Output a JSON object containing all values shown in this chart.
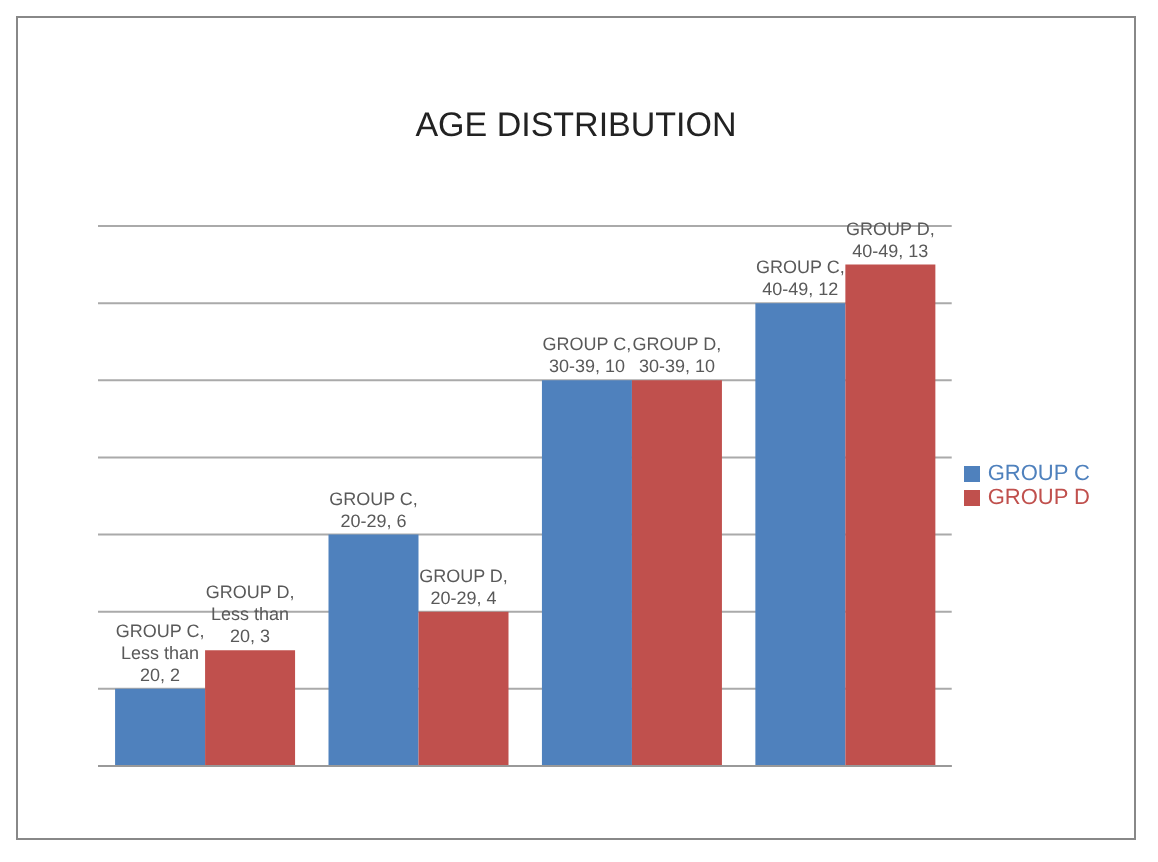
{
  "chart_data": {
    "type": "bar",
    "title": "AGE DISTRIBUTION",
    "categories": [
      null,
      null,
      null,
      null
    ],
    "series": [
      {
        "name": "GROUP C",
        "color": "#4f81bd",
        "values": [
          2,
          6,
          10,
          12
        ],
        "value_labels": [
          "GROUP C, Less than 20, 2",
          "GROUP C, 20-29, 6",
          "GROUP C, 30-39, 10",
          "GROUP C, 40-49, 12"
        ]
      },
      {
        "name": "GROUP D",
        "color": "#c0504d",
        "values": [
          3,
          4,
          10,
          13
        ],
        "value_labels": [
          "GROUP D, Less than 20, 3",
          "GROUP D, 20-29, 4",
          "GROUP D, 30-39, 10",
          "GROUP D, 40-49, 13"
        ]
      }
    ],
    "grid": "y",
    "legend": "right"
  }
}
